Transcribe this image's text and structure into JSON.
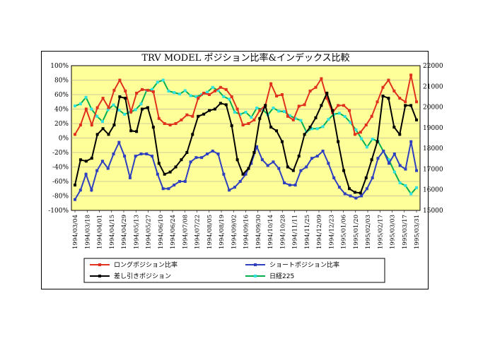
{
  "chart_data": {
    "type": "line",
    "title": "TRV MODEL ポジション比率&インデックス比較",
    "x_tick_labels": [
      "1994/03/04",
      "1994/03/18",
      "1994/04/01",
      "1994/04/15",
      "1994/04/29",
      "1994/05/13",
      "1994/05/27",
      "1994/06/10",
      "1994/06/24",
      "1994/07/08",
      "1994/07/22",
      "1994/08/05",
      "1994/08/19",
      "1994/09/02",
      "1994/09/16",
      "1994/09/30",
      "1994/10/14",
      "1994/10/28",
      "1994/11/11",
      "1994/11/25",
      "1994/12/09",
      "1994/12/23",
      "1995/01/06",
      "1995/01/20",
      "1995/02/03",
      "1995/02/17",
      "1995/03/03",
      "1995/03/17",
      "1995/03/31"
    ],
    "y_left": {
      "ticks": [
        "100%",
        "80%",
        "60%",
        "40%",
        "20%",
        "0%",
        "-20%",
        "-40%",
        "-60%",
        "-80%",
        "-100%"
      ],
      "ylim": [
        -100,
        100
      ]
    },
    "y_right": {
      "ticks": [
        "22000",
        "21000",
        "20000",
        "19000",
        "18000",
        "17000",
        "16000",
        "15000"
      ],
      "ylim": [
        15000,
        22000
      ]
    },
    "plot_background": "#ffff99",
    "grid": true,
    "legend_position": "bottom",
    "series": [
      {
        "name": "ロングポジション比率",
        "axis": "left",
        "color": "#e0301e",
        "marker": "square",
        "values": [
          5,
          18,
          40,
          18,
          42,
          55,
          42,
          66,
          80,
          65,
          36,
          62,
          67,
          66,
          64,
          27,
          20,
          18,
          20,
          25,
          32,
          30,
          55,
          62,
          60,
          65,
          70,
          67,
          57,
          40,
          18,
          20,
          25,
          38,
          45,
          75,
          58,
          60,
          30,
          25,
          44,
          46,
          65,
          70,
          82,
          55,
          35,
          45,
          45,
          38,
          5,
          8,
          18,
          30,
          50,
          70,
          80,
          65,
          55,
          50,
          87,
          50
        ]
      },
      {
        "name": "ショートポジション比率",
        "axis": "right_pct",
        "color": "#2e3fbf",
        "marker": "square",
        "values": [
          -85,
          -72,
          -50,
          -72,
          -45,
          -32,
          -42,
          -22,
          -6,
          -25,
          -55,
          -25,
          -22,
          -22,
          -25,
          -50,
          -70,
          -70,
          -65,
          -60,
          -60,
          -33,
          -27,
          -27,
          -22,
          -18,
          -22,
          -50,
          -72,
          -68,
          -60,
          -50,
          -35,
          -12,
          -30,
          -38,
          -33,
          -42,
          -62,
          -65,
          -65,
          -45,
          -40,
          -28,
          -25,
          -18,
          -35,
          -55,
          -68,
          -77,
          -80,
          -83,
          -80,
          -70,
          -55,
          -28,
          -18,
          -35,
          -22,
          -38,
          -43,
          -5,
          -45
        ]
      },
      {
        "name": "差し引きポジション",
        "axis": "left",
        "color": "#000000",
        "marker": "square",
        "values": [
          -65,
          -30,
          -32,
          -28,
          5,
          13,
          5,
          18,
          57,
          55,
          10,
          9,
          40,
          42,
          15,
          -35,
          -50,
          -47,
          -40,
          -30,
          -20,
          5,
          30,
          33,
          38,
          40,
          48,
          46,
          17,
          -30,
          -50,
          -42,
          -20,
          27,
          45,
          15,
          10,
          -5,
          -40,
          -45,
          -25,
          5,
          15,
          28,
          45,
          62,
          38,
          -5,
          -45,
          -70,
          -75,
          -76,
          -55,
          -30,
          -5,
          58,
          55,
          15,
          5,
          45,
          45,
          25
        ]
      },
      {
        "name": "日経225",
        "axis": "right",
        "color": "#2ee0e0",
        "line_color": "#00b050",
        "marker": "square",
        "values": [
          20050,
          20150,
          20470,
          19900,
          19550,
          19300,
          19870,
          20100,
          19850,
          19650,
          19750,
          19870,
          20150,
          20800,
          20850,
          21200,
          21300,
          20770,
          20700,
          20630,
          20790,
          20550,
          20500,
          20600,
          20720,
          20950,
          20800,
          20500,
          20380,
          19750,
          19650,
          19750,
          19500,
          19950,
          19900,
          19630,
          19950,
          19800,
          19780,
          19580,
          19450,
          19350,
          18800,
          18950,
          18950,
          19050,
          19400,
          19650,
          19700,
          19540,
          19250,
          18900,
          18470,
          18060,
          18450,
          18340,
          17850,
          17450,
          16860,
          16330,
          16200,
          15800,
          16100
        ]
      }
    ]
  },
  "legend": {
    "items": [
      "ロングポジション比率",
      "ショートポジション比率",
      "差し引きポジション",
      "日経225"
    ]
  }
}
